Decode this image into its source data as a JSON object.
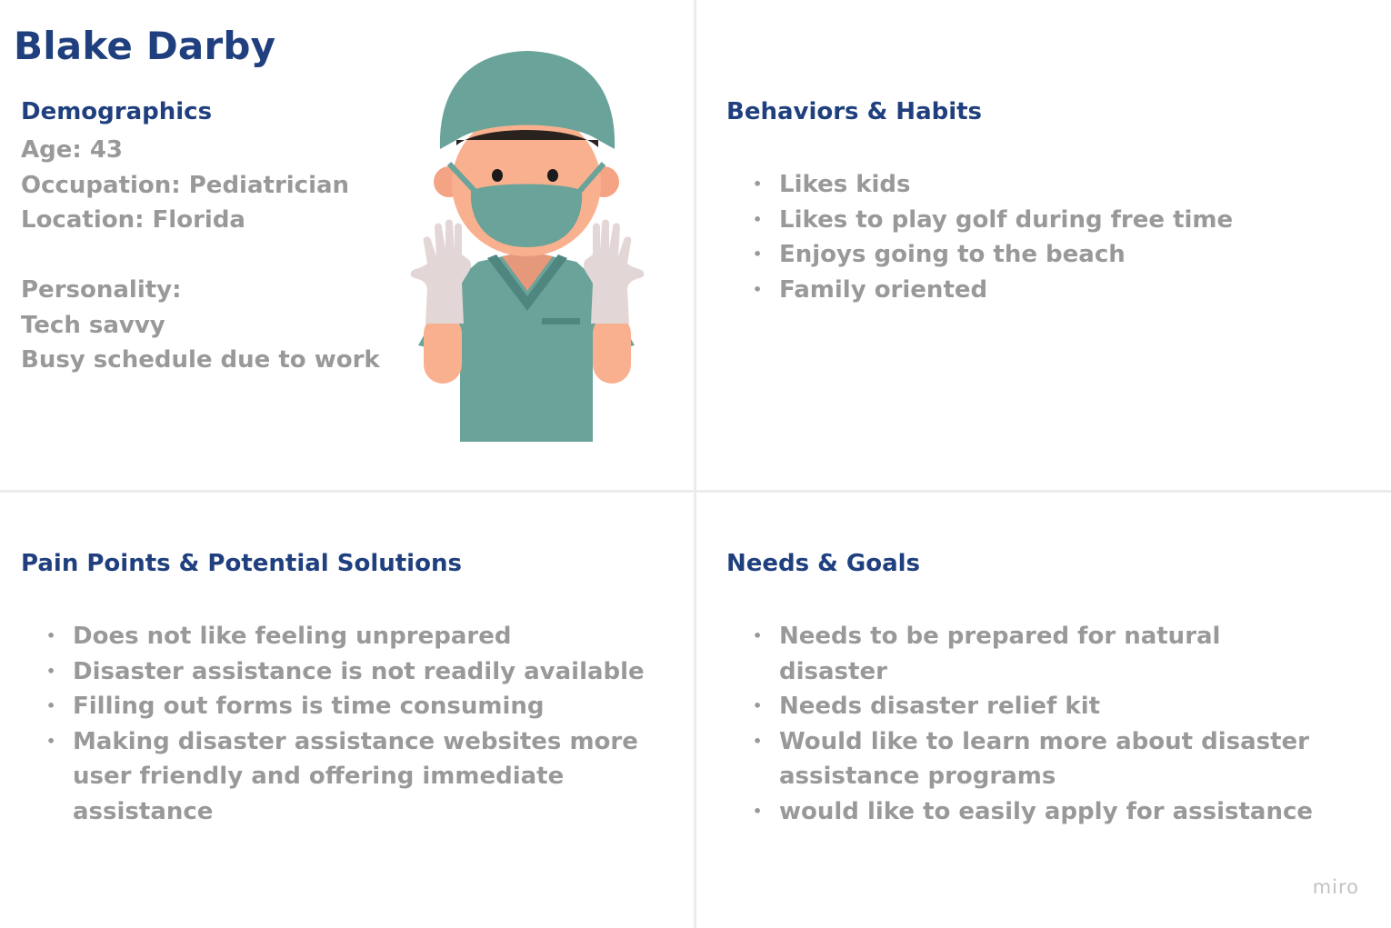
{
  "persona": {
    "name": "Blake Darby"
  },
  "demographics": {
    "heading": "Demographics",
    "lines": [
      "Age: 43",
      "Occupation: Pediatrician",
      "Location: Florida"
    ],
    "personality_label": "Personality:",
    "personality": [
      "Tech savvy",
      "Busy schedule due to work"
    ]
  },
  "illustration": {
    "icon": "doctor-in-scrubs-illustration",
    "colors": {
      "scrubs": "#69a399",
      "skin": "#f9b08f",
      "hair": "#2a221e",
      "gloves": "#e3d6d7"
    }
  },
  "behaviors": {
    "heading": "Behaviors & Habits",
    "items": [
      "Likes kids",
      "Likes to play golf during free time",
      "Enjoys going to the beach",
      "Family oriented"
    ]
  },
  "pain_points": {
    "heading": "Pain Points & Potential Solutions",
    "items": [
      "Does not like feeling unprepared",
      "Disaster assistance is not readily available",
      "Filling out forms is time consuming",
      "Making disaster assistance websites more user friendly and offering immediate assistance"
    ]
  },
  "needs": {
    "heading": "Needs & Goals",
    "items": [
      "Needs to be prepared for natural disaster",
      "Needs disaster relief kit",
      "Would like to learn more about disaster assistance programs",
      "would like to easily apply for assistance"
    ]
  },
  "brand": {
    "logo_text": "miro"
  },
  "colors": {
    "heading": "#1f3f7e",
    "body_text": "#999999",
    "divider": "#ececec"
  }
}
